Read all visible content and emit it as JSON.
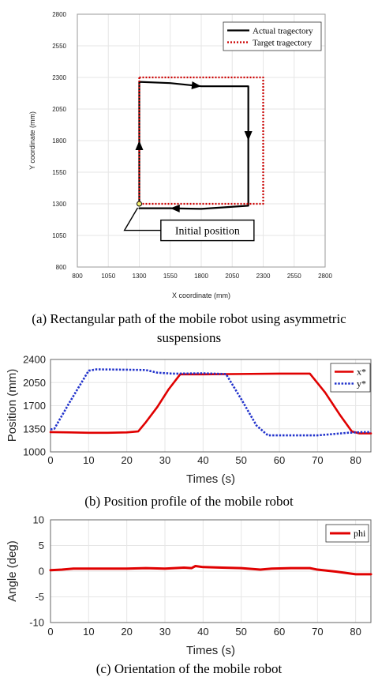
{
  "chart_data": [
    {
      "type": "line",
      "xlabel": "X coordinate (mm)",
      "ylabel": "Y coordinate (mm)",
      "xlim": [
        800,
        2800
      ],
      "ylim": [
        800,
        2800
      ],
      "xticks": [
        800,
        1050,
        1300,
        1550,
        1800,
        2050,
        2300,
        2550,
        2800
      ],
      "yticks": [
        800,
        1050,
        1300,
        1550,
        1800,
        2050,
        2300,
        2550,
        2800
      ],
      "grid": true,
      "legend": "top-right",
      "series": [
        {
          "name": "Actual tragectory",
          "color": "#000000",
          "style": "solid",
          "x": [
            1300,
            1300,
            1300,
            1300,
            1550,
            1800,
            2050,
            2180,
            2180,
            2180,
            2180,
            1800,
            1550,
            1300
          ],
          "y": [
            1290,
            1800,
            2050,
            2265,
            2255,
            2230,
            2230,
            2230,
            2050,
            1800,
            1285,
            1260,
            1265,
            1265
          ]
        },
        {
          "name": "Target tragectory",
          "color": "#cc0000",
          "style": "dotted",
          "x": [
            1300,
            2300,
            2300,
            1300,
            1300
          ],
          "y": [
            2300,
            2300,
            1300,
            1300,
            2300
          ]
        }
      ],
      "annotation": {
        "text": "Initial position",
        "point": [
          1300,
          1300
        ],
        "box_anchor": [
          1850,
          1090
        ]
      }
    },
    {
      "type": "line",
      "xlabel": "Times (s)",
      "ylabel": "Position (mm)",
      "xlim": [
        0,
        84
      ],
      "ylim": [
        1000,
        2400
      ],
      "xticks": [
        0,
        10,
        20,
        30,
        40,
        50,
        60,
        70,
        80
      ],
      "yticks": [
        1000,
        1350,
        1700,
        2050,
        2400
      ],
      "grid": true,
      "legend": "top-right",
      "series": [
        {
          "name": "x*",
          "color": "#e00000",
          "style": "solid",
          "x": [
            0,
            5,
            10,
            15,
            20,
            23,
            25,
            28,
            31,
            34,
            40,
            50,
            60,
            68,
            72,
            76,
            79,
            81,
            84
          ],
          "y": [
            1300,
            1295,
            1290,
            1290,
            1295,
            1310,
            1450,
            1680,
            1950,
            2175,
            2175,
            2180,
            2185,
            2185,
            1900,
            1550,
            1310,
            1280,
            1280
          ]
        },
        {
          "name": "y*",
          "color": "#2233cc",
          "style": "dotted",
          "x": [
            0,
            1,
            5,
            10,
            12,
            20,
            25,
            28,
            32,
            40,
            46,
            50,
            54,
            57,
            65,
            70,
            78,
            82,
            84
          ],
          "y": [
            1340,
            1350,
            1750,
            2230,
            2250,
            2245,
            2240,
            2200,
            2185,
            2190,
            2180,
            1800,
            1400,
            1250,
            1250,
            1250,
            1290,
            1300,
            1300
          ]
        }
      ]
    },
    {
      "type": "line",
      "xlabel": "Times (s)",
      "ylabel": "Angle (deg)",
      "xlim": [
        0,
        84
      ],
      "ylim": [
        -10,
        10
      ],
      "xticks": [
        0,
        10,
        20,
        30,
        40,
        50,
        60,
        70,
        80
      ],
      "yticks": [
        -10,
        -5,
        0,
        5,
        10
      ],
      "grid": true,
      "legend": "top-right",
      "series": [
        {
          "name": "phi",
          "color": "#e00000",
          "style": "solid",
          "x": [
            0,
            3,
            6,
            10,
            15,
            20,
            25,
            30,
            35,
            37,
            38,
            40,
            45,
            50,
            55,
            58,
            63,
            68,
            70,
            75,
            80,
            84
          ],
          "y": [
            0.2,
            0.3,
            0.5,
            0.5,
            0.5,
            0.5,
            0.6,
            0.5,
            0.7,
            0.6,
            1.0,
            0.8,
            0.7,
            0.6,
            0.3,
            0.5,
            0.6,
            0.6,
            0.3,
            -0.1,
            -0.6,
            -0.6
          ]
        }
      ]
    }
  ],
  "captions": {
    "a_line1": "(a) Rectangular path of the mobile robot using asymmetric",
    "a_line2": "suspensions",
    "b": "(b) Position profile of the mobile robot",
    "c": "(c) Orientation of the mobile robot"
  }
}
